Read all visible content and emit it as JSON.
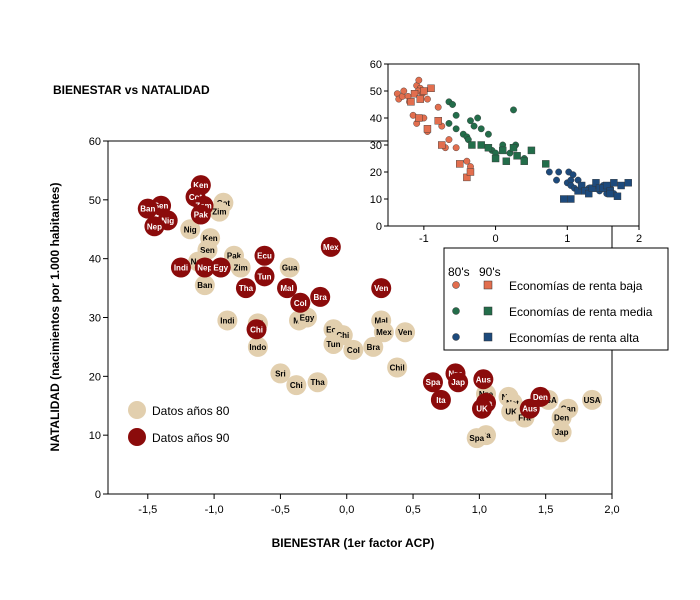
{
  "title": "BIENESTAR vs NATALIDAD",
  "colors": {
    "ochenta": "#e2cfae",
    "noventa": "#8b0b0b",
    "baja": "#e26e4e",
    "media": "#236d4a",
    "alta": "#1d4a7c"
  },
  "chart_data": [
    {
      "type": "scatter",
      "title": "BIENESTAR vs NATALIDAD",
      "xlabel": "BIENESTAR (1er factor ACP)",
      "ylabel": "NATALIDAD (nacimientos por 1.000 habitantes)",
      "xlim": [
        -1.8,
        2.0
      ],
      "ylim": [
        0,
        60
      ],
      "xticks": [
        "-1,5",
        "-1,0",
        "-0,5",
        "0,0",
        "0,5",
        "1,0",
        "1,5",
        "2,0"
      ],
      "yticks": [
        "0",
        "10",
        "20",
        "30",
        "40",
        "50",
        "60"
      ],
      "legend": [
        "Datos años 80",
        "Datos años 90"
      ],
      "legend_position": "bottom-left",
      "series": [
        {
          "name": "Datos años 80",
          "points": [
            {
              "x": -0.93,
              "y": 49.5,
              "label": "Cot"
            },
            {
              "x": -0.96,
              "y": 48.0,
              "label": "Zim"
            },
            {
              "x": -1.18,
              "y": 45.0,
              "label": "Nig"
            },
            {
              "x": -1.03,
              "y": 43.5,
              "label": "Ken"
            },
            {
              "x": -1.05,
              "y": 41.5,
              "label": "Sen"
            },
            {
              "x": -1.12,
              "y": 39.5,
              "label": "Nep"
            },
            {
              "x": -0.85,
              "y": 40.5,
              "label": "Pak"
            },
            {
              "x": -0.8,
              "y": 38.5,
              "label": "Zim"
            },
            {
              "x": -1.07,
              "y": 35.5,
              "label": "Ban"
            },
            {
              "x": -0.43,
              "y": 38.5,
              "label": "Gua"
            },
            {
              "x": -0.9,
              "y": 29.5,
              "label": "Indi"
            },
            {
              "x": -0.67,
              "y": 29.0,
              "label": "Sri"
            },
            {
              "x": -0.36,
              "y": 29.5,
              "label": "Mo"
            },
            {
              "x": -0.3,
              "y": 30.0,
              "label": "Egy"
            },
            {
              "x": -0.1,
              "y": 28.0,
              "label": "Ecu"
            },
            {
              "x": -0.03,
              "y": 27.0,
              "label": "Chi"
            },
            {
              "x": -0.1,
              "y": 25.5,
              "label": "Tun"
            },
            {
              "x": -0.67,
              "y": 25.0,
              "label": "Indo"
            },
            {
              "x": 0.05,
              "y": 24.5,
              "label": "Col"
            },
            {
              "x": 0.2,
              "y": 25.0,
              "label": "Bra"
            },
            {
              "x": 0.26,
              "y": 29.5,
              "label": "Mal"
            },
            {
              "x": 0.28,
              "y": 27.5,
              "label": "Mex"
            },
            {
              "x": 0.44,
              "y": 27.5,
              "label": "Ven"
            },
            {
              "x": 0.38,
              "y": 21.5,
              "label": "Chil"
            },
            {
              "x": -0.5,
              "y": 20.5,
              "label": "Sri"
            },
            {
              "x": -0.38,
              "y": 18.5,
              "label": "Chi"
            },
            {
              "x": -0.22,
              "y": 19.0,
              "label": "Tha"
            },
            {
              "x": 1.05,
              "y": 17.0,
              "label": "Nze"
            },
            {
              "x": 1.22,
              "y": 16.5,
              "label": "Nor"
            },
            {
              "x": 1.25,
              "y": 15.5,
              "label": "Net"
            },
            {
              "x": 1.24,
              "y": 14.0,
              "label": "UK"
            },
            {
              "x": 1.34,
              "y": 13.0,
              "label": "Fra"
            },
            {
              "x": 1.52,
              "y": 16.0,
              "label": "USA"
            },
            {
              "x": 1.67,
              "y": 14.5,
              "label": "Can"
            },
            {
              "x": 1.62,
              "y": 13.0,
              "label": "Den"
            },
            {
              "x": 1.62,
              "y": 10.5,
              "label": "Jap"
            },
            {
              "x": 1.85,
              "y": 16.0,
              "label": "USA"
            },
            {
              "x": 1.05,
              "y": 10.0,
              "label": "Ita"
            },
            {
              "x": 0.98,
              "y": 9.5,
              "label": "Spa"
            }
          ]
        },
        {
          "name": "Datos años 90",
          "points": [
            {
              "x": -1.1,
              "y": 52.5,
              "label": "Ken"
            },
            {
              "x": -1.4,
              "y": 49.0,
              "label": "Sen"
            },
            {
              "x": -1.14,
              "y": 50.5,
              "label": "Cot"
            },
            {
              "x": -1.08,
              "y": 49.0,
              "label": "Zam"
            },
            {
              "x": -1.1,
              "y": 47.5,
              "label": "Pak"
            },
            {
              "x": -1.5,
              "y": 48.5,
              "label": "Ban"
            },
            {
              "x": -1.35,
              "y": 46.5,
              "label": "Nig"
            },
            {
              "x": -1.45,
              "y": 45.5,
              "label": "Nep"
            },
            {
              "x": -1.25,
              "y": 38.5,
              "label": "Indi"
            },
            {
              "x": -1.07,
              "y": 38.5,
              "label": "Nep"
            },
            {
              "x": -0.95,
              "y": 38.5,
              "label": "Egy"
            },
            {
              "x": -0.62,
              "y": 40.5,
              "label": "Ecu"
            },
            {
              "x": -0.12,
              "y": 42.0,
              "label": "Mex"
            },
            {
              "x": -0.76,
              "y": 35.0,
              "label": "Tha"
            },
            {
              "x": -0.62,
              "y": 37.0,
              "label": "Tun"
            },
            {
              "x": -0.45,
              "y": 35.0,
              "label": "Mal"
            },
            {
              "x": -0.35,
              "y": 32.5,
              "label": "Col"
            },
            {
              "x": -0.2,
              "y": 33.5,
              "label": "Bra"
            },
            {
              "x": 0.26,
              "y": 35.0,
              "label": "Ven"
            },
            {
              "x": -0.68,
              "y": 28.0,
              "label": "Chi"
            },
            {
              "x": 0.65,
              "y": 19.0,
              "label": "Spa"
            },
            {
              "x": 0.82,
              "y": 20.5,
              "label": "Nze"
            },
            {
              "x": 0.84,
              "y": 19.0,
              "label": "Jap"
            },
            {
              "x": 1.03,
              "y": 19.5,
              "label": "Aus"
            },
            {
              "x": 0.71,
              "y": 16.0,
              "label": "Ita"
            },
            {
              "x": 1.05,
              "y": 15.5,
              "label": "Fra"
            },
            {
              "x": 1.02,
              "y": 14.5,
              "label": "UK"
            },
            {
              "x": 1.46,
              "y": 16.5,
              "label": "Den"
            },
            {
              "x": 1.38,
              "y": 14.5,
              "label": "Aus"
            }
          ]
        }
      ]
    },
    {
      "type": "scatter",
      "title": "",
      "xlabel": "",
      "ylabel": "",
      "xlim": [
        -1.5,
        2.0
      ],
      "ylim": [
        0,
        60
      ],
      "xticks": [
        "-1",
        "0",
        "1",
        "2"
      ],
      "yticks": [
        "0",
        "10",
        "20",
        "30",
        "40",
        "50",
        "60"
      ],
      "legend_header": [
        "80's",
        "90's"
      ],
      "legend_position": "bottom-right",
      "series": [
        {
          "name": "Economías de renta baja",
          "decade": "80's",
          "marker": "circle",
          "points": [
            [
              -1.37,
              49
            ],
            [
              -1.35,
              47
            ],
            [
              -1.3,
              48
            ],
            [
              -1.28,
              50
            ],
            [
              -1.22,
              48
            ],
            [
              -1.2,
              46
            ],
            [
              -1.1,
              52
            ],
            [
              -1.07,
              54
            ],
            [
              -1.05,
              51
            ],
            [
              -1.08,
              50
            ],
            [
              -1.02,
              49
            ],
            [
              -1.0,
              50
            ],
            [
              -0.95,
              47
            ],
            [
              -1.15,
              41
            ],
            [
              -1.0,
              40
            ],
            [
              -1.1,
              38
            ],
            [
              -0.8,
              44
            ],
            [
              -0.75,
              37
            ],
            [
              -0.65,
              32
            ],
            [
              -0.95,
              35
            ],
            [
              -0.7,
              29
            ],
            [
              -0.55,
              29
            ],
            [
              -0.4,
              24
            ],
            [
              -0.35,
              22
            ]
          ]
        },
        {
          "name": "Economías de renta baja",
          "decade": "90's",
          "marker": "square",
          "points": [
            [
              -1.18,
              46
            ],
            [
              -1.13,
              49
            ],
            [
              -1.05,
              47
            ],
            [
              -1.0,
              50
            ],
            [
              -0.9,
              51
            ],
            [
              -1.07,
              40
            ],
            [
              -0.95,
              36
            ],
            [
              -0.8,
              39
            ],
            [
              -0.75,
              30
            ],
            [
              -0.5,
              23
            ],
            [
              -0.4,
              18
            ],
            [
              -0.35,
              20
            ]
          ]
        },
        {
          "name": "Economías de renta media",
          "decade": "80's",
          "marker": "circle",
          "points": [
            [
              -0.65,
              38
            ],
            [
              -0.55,
              41
            ],
            [
              -0.55,
              36
            ],
            [
              -0.45,
              34
            ],
            [
              -0.4,
              33
            ],
            [
              -0.38,
              32
            ],
            [
              -0.3,
              37
            ],
            [
              -0.2,
              36
            ],
            [
              -0.1,
              34
            ],
            [
              -0.05,
              28
            ],
            [
              0.0,
              27
            ],
            [
              0.1,
              30
            ],
            [
              0.2,
              27
            ],
            [
              0.28,
              30
            ],
            [
              0.4,
              25
            ],
            [
              -0.25,
              40
            ],
            [
              -0.35,
              39
            ],
            [
              -0.65,
              46
            ],
            [
              -0.6,
              45
            ],
            [
              0.25,
              43
            ]
          ]
        },
        {
          "name": "Economías de renta media",
          "decade": "90's",
          "marker": "square",
          "points": [
            [
              -0.33,
              30
            ],
            [
              -0.2,
              30
            ],
            [
              -0.1,
              29
            ],
            [
              0.0,
              25
            ],
            [
              0.1,
              28
            ],
            [
              0.15,
              24
            ],
            [
              0.25,
              29
            ],
            [
              0.3,
              26
            ],
            [
              0.4,
              24
            ],
            [
              0.5,
              28
            ],
            [
              0.7,
              23
            ]
          ]
        },
        {
          "name": "Economías de renta alta",
          "decade": "80's",
          "marker": "circle",
          "points": [
            [
              0.75,
              20
            ],
            [
              0.85,
              17
            ],
            [
              0.88,
              20
            ],
            [
              1.0,
              16
            ],
            [
              1.02,
              20
            ],
            [
              1.05,
              17
            ],
            [
              1.08,
              19
            ],
            [
              1.15,
              17
            ],
            [
              1.2,
              15
            ],
            [
              1.3,
              14
            ],
            [
              1.4,
              15
            ],
            [
              1.45,
              13
            ],
            [
              1.5,
              15
            ],
            [
              1.55,
              12
            ],
            [
              1.6,
              14
            ],
            [
              1.65,
              12
            ],
            [
              1.05,
              15
            ],
            [
              1.1,
              14
            ],
            [
              0.95,
              10
            ]
          ]
        },
        {
          "name": "Economías de renta alta",
          "decade": "90's",
          "marker": "square",
          "points": [
            [
              0.95,
              10
            ],
            [
              1.05,
              10
            ],
            [
              1.15,
              13
            ],
            [
              1.2,
              15
            ],
            [
              1.25,
              13
            ],
            [
              1.3,
              12
            ],
            [
              1.35,
              14
            ],
            [
              1.4,
              16
            ],
            [
              1.45,
              14
            ],
            [
              1.5,
              14
            ],
            [
              1.55,
              15
            ],
            [
              1.6,
              13
            ],
            [
              1.65,
              16
            ],
            [
              1.7,
              11
            ],
            [
              1.75,
              15
            ],
            [
              1.85,
              16
            ],
            [
              1.6,
              12
            ]
          ]
        }
      ]
    }
  ]
}
